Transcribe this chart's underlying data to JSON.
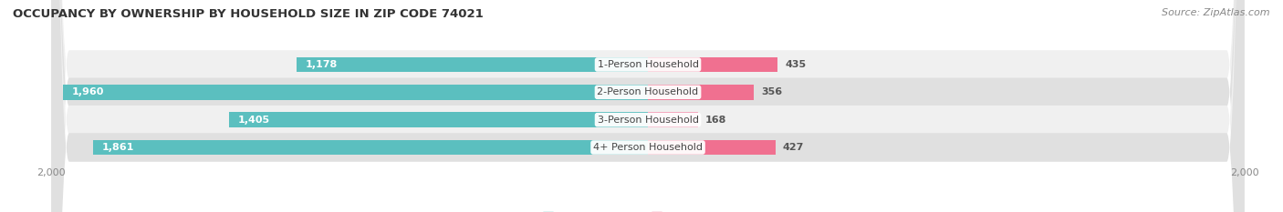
{
  "title": "OCCUPANCY BY OWNERSHIP BY HOUSEHOLD SIZE IN ZIP CODE 74021",
  "source": "Source: ZipAtlas.com",
  "categories": [
    "1-Person Household",
    "2-Person Household",
    "3-Person Household",
    "4+ Person Household"
  ],
  "owner_values": [
    1178,
    1960,
    1405,
    1861
  ],
  "renter_values": [
    435,
    356,
    168,
    427
  ],
  "owner_color": "#5bbfbf",
  "renter_color_rows": [
    "#f07090",
    "#f07090",
    "#f4a0b8",
    "#f07090"
  ],
  "renter_color": "#f07090",
  "renter_color_light": "#f4a0b8",
  "row_bg_colors": [
    "#f0f0f0",
    "#e0e0e0",
    "#f0f0f0",
    "#e0e0e0"
  ],
  "max_value": 2000,
  "label_color_dark": "#555555",
  "label_color_light": "#ffffff",
  "background_color": "#ffffff",
  "title_fontsize": 9.5,
  "source_fontsize": 8,
  "bar_label_fontsize": 8,
  "category_fontsize": 8,
  "legend_fontsize": 8,
  "tick_fontsize": 8
}
